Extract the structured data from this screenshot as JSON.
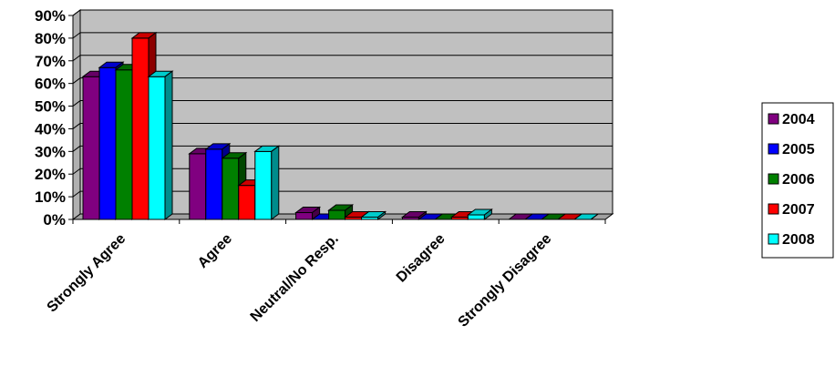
{
  "chart_data": {
    "type": "bar",
    "title": "",
    "xlabel": "",
    "ylabel": "",
    "ylim": [
      0,
      90
    ],
    "yticks": [
      "0%",
      "10%",
      "20%",
      "30%",
      "40%",
      "50%",
      "60%",
      "70%",
      "80%",
      "90%"
    ],
    "y_unit": "%",
    "grid": true,
    "three_d": true,
    "legend_position": "right",
    "plot_background": "#c0c0c0",
    "categories": [
      "Strongly Agree",
      "Agree",
      "Neutral/No Resp.",
      "Disagree",
      "Strongly Disagree"
    ],
    "series": [
      {
        "name": "2004",
        "color": "#800080",
        "values": [
          63,
          29,
          3,
          1,
          0
        ]
      },
      {
        "name": "2005",
        "color": "#0000ff",
        "values": [
          67,
          31,
          0,
          0,
          0
        ]
      },
      {
        "name": "2006",
        "color": "#008000",
        "values": [
          66,
          27,
          4,
          0,
          0
        ]
      },
      {
        "name": "2007",
        "color": "#ff0000",
        "values": [
          80,
          15,
          1,
          1,
          0
        ]
      },
      {
        "name": "2008",
        "color": "#00ffff",
        "values": [
          63,
          30,
          1,
          2,
          0
        ]
      }
    ]
  }
}
